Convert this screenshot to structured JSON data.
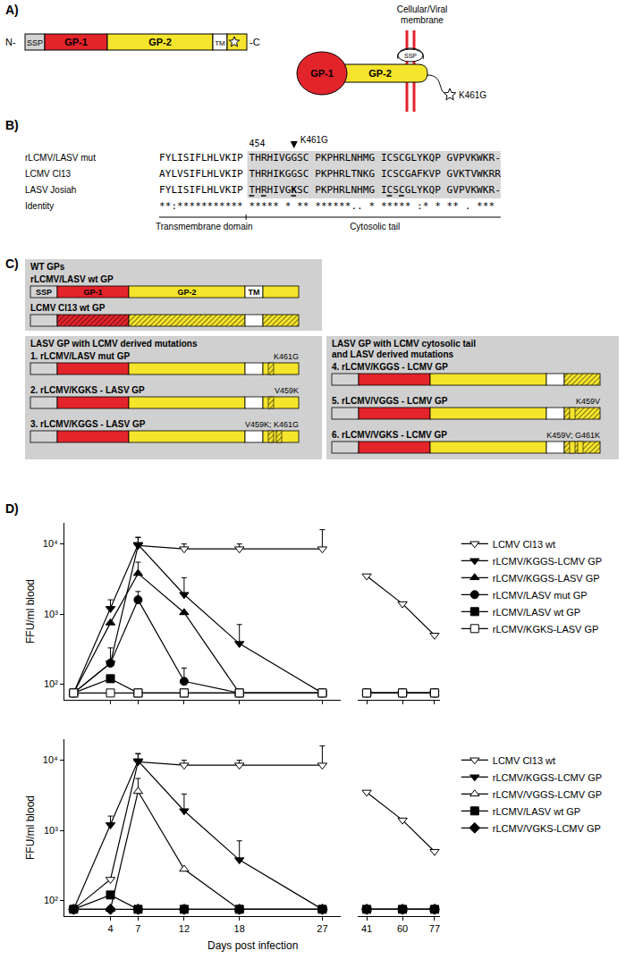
{
  "panels": {
    "A": {
      "letter": "A)",
      "n_term": "N-",
      "c_term": "-C",
      "domains": [
        "SSP",
        "GP-1",
        "GP-2",
        "TM"
      ],
      "membrane_label": [
        "Cellular/Viral",
        "membrane"
      ],
      "schematic": {
        "gp1": "GP-1",
        "gp2": "GP-2",
        "ssp": "SSP",
        "mutation": "K461G"
      }
    },
    "B": {
      "letter": "B)",
      "position_label": "454",
      "position_label_index": 15,
      "mutation": "K461G",
      "mutation_index": 22,
      "rows": [
        {
          "name": "rLCMV/LASV mut",
          "sequence": "FYLISIFLHLVKIP THRHIVGGSC PKPHRLNHMG ICSCGLYKQP GVPVKWKR-"
        },
        {
          "name": "LCMV Cl13",
          "sequence": "AYLVSIFLHLVKIP THRHIKGGSC PKPHRLTNKG ICSCGAFKVP GVKTVWKRR"
        },
        {
          "name": "LASV Josiah",
          "sequence": "FYLISIFLHLVKIP THRHIVGKSC PKPHRLNHMG ICSCGLYKQP GVPVKWKR-",
          "bold_index": 22,
          "underlined": [
            15,
            17,
            22,
            38,
            40
          ]
        }
      ],
      "identity_name": "Identity",
      "identity": "**:*********** ***** * ** ******.. * ***** :* * ** . *** ",
      "regions": [
        "Transmembrane domain",
        "Cytosolic tail"
      ]
    },
    "C": {
      "letter": "C)",
      "groups": [
        {
          "title": [
            "WT GPs"
          ],
          "entries": [
            {
              "name": "rLCMV/LASV wt GP",
              "ecto": "LASV",
              "tail": "LASV",
              "domains": [
                "SSP",
                "GP-1",
                "GP-2",
                "TM"
              ]
            },
            {
              "name": "LCMV Cl13 wt GP",
              "ecto": "LCMV",
              "tail": "LCMV"
            }
          ]
        },
        {
          "title": [
            "LASV GP with LCMV derived mutations"
          ],
          "entries": [
            {
              "name": "1. rLCMV/LASV mut GP",
              "ecto": "LASV",
              "tail": "LASV",
              "mutations": "K461G"
            },
            {
              "name": "2. rLCMV/KGKS - LASV GP",
              "ecto": "LASV",
              "tail": "LASV",
              "mutations": "V459K"
            },
            {
              "name": "3. rLCMV/KGGS - LASV GP",
              "ecto": "LASV",
              "tail": "LASV",
              "mutations": "V459K; K461G"
            }
          ]
        },
        {
          "title": [
            "LASV GP with LCMV cytosolic tail",
            "and LASV derived mutations"
          ],
          "entries": [
            {
              "name": "4. rLCMV/KGGS - LCMV GP",
              "ecto": "LASV",
              "tail": "LCMV"
            },
            {
              "name": "5. rLCMV/VGGS - LCMV GP",
              "ecto": "LASV",
              "tail": "LCMV",
              "mutations": "K459V"
            },
            {
              "name": "6. rLCMV/VGKS - LCMV GP",
              "ecto": "LASV",
              "tail": "LCMV",
              "mutations": "K459V; G461K"
            }
          ]
        }
      ]
    },
    "D": {
      "letter": "D)"
    }
  },
  "chart_data": [
    {
      "type": "line",
      "y_label": "FFU/ml blood",
      "log": "y",
      "grid": false,
      "legend": "right",
      "tick_labels": "y",
      "x": [
        0,
        4,
        7,
        12,
        18,
        27,
        41,
        60,
        77
      ],
      "xlim": [
        -1,
        29
      ],
      "xticks": [
        4,
        7,
        12,
        18,
        27
      ],
      "x2lim": [
        36,
        80
      ],
      "x2ticks": [
        41,
        60,
        77
      ],
      "ylim": [
        60,
        20000
      ],
      "yticks": [
        {
          "value": 100,
          "label": "10²"
        },
        {
          "value": 1000,
          "label": "10³"
        },
        {
          "value": 10000,
          "label": "10⁴"
        }
      ],
      "series": [
        {
          "name": "LCMV Cl13 wt",
          "marker": "triangle-down",
          "color": "white",
          "values": [
            75,
            200,
            9500,
            8500,
            8500,
            8500,
            3500,
            1400,
            500
          ],
          "error": [
            null,
            null,
            3000,
            1500,
            1500,
            7500,
            null,
            null,
            null
          ]
        },
        {
          "name": "rLCMV/KGGS-LCMV GP",
          "marker": "triangle-down",
          "color": "black",
          "values": [
            75,
            1200,
            9800,
            1900,
            380,
            75,
            75,
            75,
            75
          ],
          "error": [
            null,
            400,
            2500,
            1400,
            330,
            null,
            null,
            null,
            null
          ]
        },
        {
          "name": "rLCMV/KGGS-LASV GP",
          "marker": "triangle-up",
          "color": "black",
          "values": [
            75,
            750,
            3800,
            1050,
            75,
            75,
            75,
            75,
            75
          ],
          "error": [
            null,
            null,
            1700,
            null,
            null,
            null,
            null,
            null,
            null
          ]
        },
        {
          "name": "rLCMV/LASV mut GP",
          "marker": "circle",
          "color": "black",
          "values": [
            75,
            200,
            1600,
            110,
            75,
            75,
            75,
            75,
            75
          ],
          "error": [
            null,
            130,
            500,
            60,
            null,
            null,
            null,
            null,
            null
          ]
        },
        {
          "name": "rLCMV/LASV wt GP",
          "marker": "square",
          "color": "black",
          "values": [
            75,
            120,
            75,
            75,
            75,
            75,
            75,
            75,
            75
          ]
        },
        {
          "name": "rLCMV/KGKS-LASV GP",
          "marker": "square",
          "color": "white",
          "values": [
            75,
            75,
            75,
            75,
            75,
            75,
            75,
            75,
            75
          ]
        }
      ]
    },
    {
      "type": "line",
      "x_label": "Days post infection",
      "y_label": "FFU/ml blood",
      "log": "y",
      "grid": false,
      "legend": "right",
      "tick_labels": true,
      "x": [
        0,
        4,
        7,
        12,
        18,
        27,
        41,
        60,
        77
      ],
      "xlim": [
        -1,
        29
      ],
      "xticks": [
        4,
        7,
        12,
        18,
        27
      ],
      "x2lim": [
        36,
        80
      ],
      "x2ticks": [
        41,
        60,
        77
      ],
      "ylim": [
        60,
        20000
      ],
      "yticks": [
        {
          "value": 100,
          "label": "10²"
        },
        {
          "value": 1000,
          "label": "10³"
        },
        {
          "value": 10000,
          "label": "10⁴"
        }
      ],
      "series": [
        {
          "name": "LCMV Cl13 wt",
          "marker": "triangle-down",
          "color": "white",
          "values": [
            75,
            200,
            9500,
            8500,
            8500,
            8500,
            3500,
            1400,
            500
          ],
          "error": [
            null,
            null,
            3000,
            1500,
            1500,
            7500,
            null,
            null,
            null
          ]
        },
        {
          "name": "rLCMV/KGGS-LCMV GP",
          "marker": "triangle-down",
          "color": "black",
          "values": [
            75,
            1200,
            9800,
            1900,
            380,
            75,
            75,
            75,
            75
          ],
          "error": [
            null,
            400,
            2500,
            1400,
            330,
            null,
            null,
            null,
            null
          ]
        },
        {
          "name": "rLCMV/VGGS-LCMV GP",
          "marker": "triangle-up",
          "color": "white",
          "values": [
            75,
            75,
            3600,
            280,
            75,
            75,
            75,
            75,
            75
          ],
          "error": [
            null,
            null,
            1900,
            null,
            null,
            null,
            null,
            null,
            null
          ]
        },
        {
          "name": "rLCMV/LASV wt GP",
          "marker": "square",
          "color": "black",
          "values": [
            75,
            120,
            75,
            75,
            75,
            75,
            75,
            75,
            75
          ]
        },
        {
          "name": "rLCMV/VGKS-LCMV GP",
          "marker": "diamond",
          "color": "black",
          "values": [
            75,
            75,
            75,
            75,
            75,
            75,
            75,
            75,
            75
          ]
        }
      ]
    }
  ]
}
